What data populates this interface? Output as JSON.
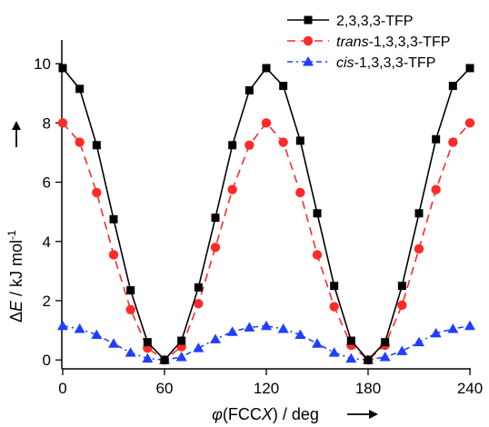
{
  "chart_data": {
    "type": "line",
    "x": [
      0,
      10,
      20,
      30,
      40,
      50,
      60,
      70,
      80,
      90,
      100,
      110,
      120,
      130,
      140,
      150,
      160,
      170,
      180,
      190,
      200,
      210,
      220,
      230,
      240
    ],
    "xticks": [
      0,
      60,
      120,
      180,
      240
    ],
    "yticks": [
      0,
      2,
      4,
      6,
      8,
      10
    ],
    "xlim": [
      0,
      240
    ],
    "ylim": [
      -0.3,
      10.8
    ],
    "grid": false,
    "legend_position": "top-right",
    "xlabel": {
      "phi": "φ",
      "pre": "(FCC",
      "ital": "X",
      "post": ") / deg"
    },
    "ylabel": {
      "delta": "Δ",
      "E": "E",
      "rest": " / kJ mol",
      "sup": "-1"
    },
    "series": [
      {
        "name_parts": {
          "ital": "",
          "rest": "2,3,3,3-TFP"
        },
        "color": "#000000",
        "marker": "square",
        "dash": "",
        "values": [
          9.85,
          9.15,
          7.25,
          4.75,
          2.35,
          0.6,
          0.0,
          0.65,
          2.45,
          4.8,
          7.25,
          9.1,
          9.85,
          9.25,
          7.4,
          4.95,
          2.5,
          0.65,
          0.0,
          0.6,
          2.5,
          4.95,
          7.45,
          9.25,
          9.85
        ]
      },
      {
        "name_parts": {
          "ital": "trans",
          "rest": "-1,3,3,3-TFP"
        },
        "color": "#ff2a2a",
        "marker": "circle",
        "dash": "9,6",
        "values": [
          8.0,
          7.35,
          5.65,
          3.55,
          1.7,
          0.4,
          0.0,
          0.45,
          1.9,
          3.8,
          5.75,
          7.25,
          8.0,
          7.35,
          5.65,
          3.55,
          1.8,
          0.5,
          0.0,
          0.5,
          1.85,
          3.75,
          5.75,
          7.35,
          8.0
        ]
      },
      {
        "name_parts": {
          "ital": "cis",
          "rest": "-1,3,3,3-TFP"
        },
        "color": "#1f3fff",
        "marker": "triangle",
        "dash": "6,4,2,4",
        "values": [
          1.15,
          1.05,
          0.85,
          0.55,
          0.25,
          0.05,
          0.0,
          0.1,
          0.4,
          0.7,
          0.95,
          1.1,
          1.15,
          1.05,
          0.85,
          0.55,
          0.25,
          0.05,
          0.0,
          0.1,
          0.3,
          0.6,
          0.9,
          1.05,
          1.15
        ]
      }
    ]
  }
}
